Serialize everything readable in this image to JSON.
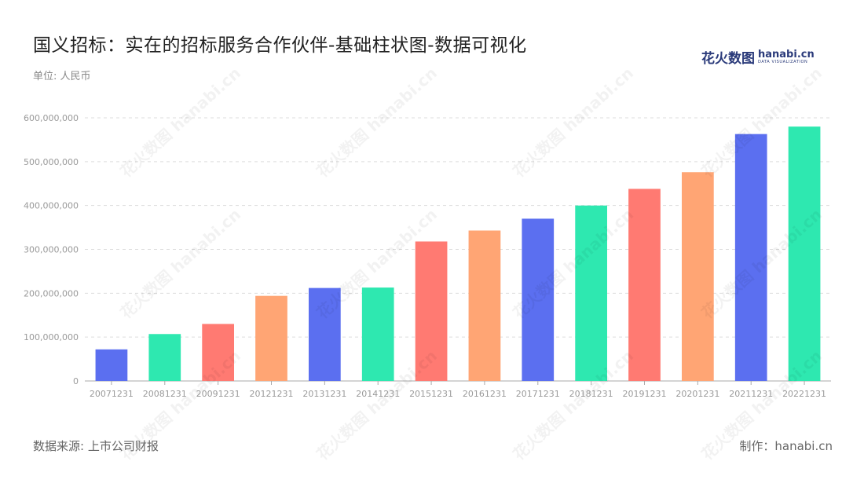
{
  "header": {
    "title": "国义招标：实在的招标服务合作伙伴-基础柱状图-数据可视化",
    "unit": "单位: 人民币"
  },
  "logo": {
    "cn": "花火数图",
    "en": "hanabi.cn",
    "sub": "DATA VISUALIZATION"
  },
  "footer": {
    "source": "数据来源: 上市公司财报",
    "maker": "制作：hanabi.cn"
  },
  "watermark": "花火数图 hanabi.cn",
  "colors": {
    "palette": [
      "#5b6ff0",
      "#2ee8b0",
      "#ff7a72",
      "#ffa574"
    ],
    "grid": "#dddddd",
    "axis": "#aaaaaa",
    "tick_text": "#9a9a9a"
  },
  "chart_data": {
    "type": "bar",
    "categories": [
      "20071231",
      "20081231",
      "20091231",
      "20121231",
      "20131231",
      "20141231",
      "20151231",
      "20161231",
      "20171231",
      "20181231",
      "20191231",
      "20201231",
      "20211231",
      "20221231"
    ],
    "values": [
      72000000,
      107000000,
      130000000,
      194000000,
      212000000,
      213000000,
      318000000,
      343000000,
      370000000,
      400000000,
      438000000,
      476000000,
      563000000,
      580000000
    ],
    "ylim": [
      0,
      600000000
    ],
    "yticks": [
      "0",
      "100,000,000",
      "200,000,000",
      "300,000,000",
      "400,000,000",
      "500,000,000",
      "600,000,000"
    ],
    "grid": true,
    "legend": "none"
  }
}
